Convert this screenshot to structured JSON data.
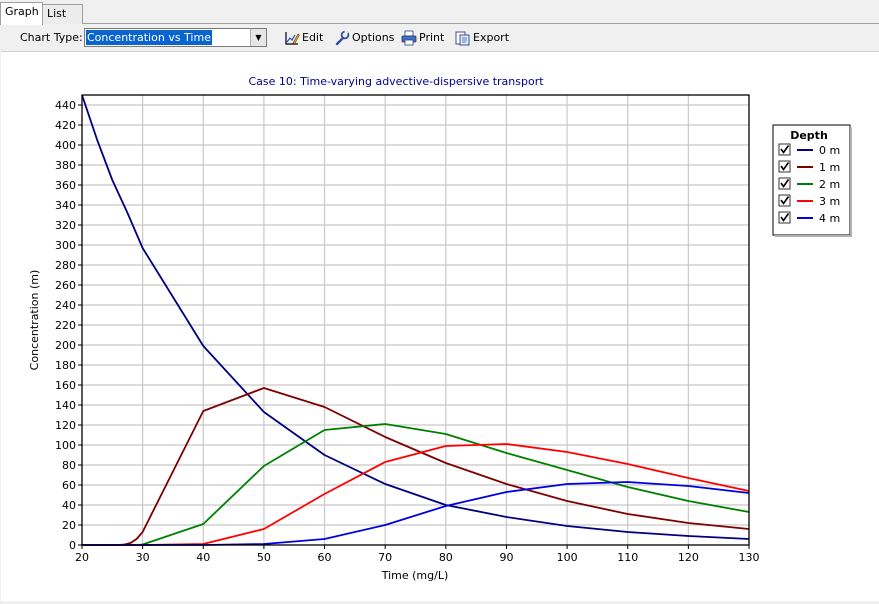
{
  "tabs": [
    {
      "label": "Graph",
      "active": true
    },
    {
      "label": "List",
      "active": false
    }
  ],
  "toolbar": {
    "chart_type_label": "Chart Type:",
    "chart_type_value": "Concentration vs Time",
    "edit_label": "Edit",
    "options_label": "Options",
    "print_label": "Print",
    "export_label": "Export"
  },
  "chart_data": {
    "type": "line",
    "title": "Case 10: Time-varying advective-dispersive transport",
    "xlabel": "Time (mg/L)",
    "ylabel": "Concentration (m)",
    "xlim": [
      20,
      130
    ],
    "ylim": [
      0,
      450
    ],
    "xticks": [
      20,
      30,
      40,
      50,
      60,
      70,
      80,
      90,
      100,
      110,
      120,
      130
    ],
    "yticks": [
      0,
      20,
      40,
      60,
      80,
      100,
      120,
      140,
      160,
      180,
      200,
      220,
      240,
      260,
      280,
      300,
      320,
      340,
      360,
      380,
      400,
      420,
      440
    ],
    "grid": true,
    "legend_title": "Depth",
    "legend_placement": "right",
    "series": [
      {
        "name": "0 m",
        "color": "#000080",
        "checked": true,
        "x": [
          20,
          22.5,
          25,
          27.5,
          30,
          40,
          50,
          60,
          70,
          80,
          90,
          100,
          110,
          120,
          130
        ],
        "y": [
          450,
          405,
          365,
          332,
          297,
          199,
          133,
          90,
          61,
          40,
          28,
          19,
          13,
          9,
          6
        ]
      },
      {
        "name": "1 m",
        "color": "#800000",
        "checked": true,
        "x": [
          20,
          26,
          27,
          28,
          29,
          30,
          40,
          50,
          60,
          70,
          80,
          90,
          100,
          110,
          120,
          130
        ],
        "y": [
          0,
          0,
          0.5,
          2,
          6,
          13,
          134,
          157,
          138,
          108,
          82,
          61,
          44,
          31,
          22,
          16
        ]
      },
      {
        "name": "2 m",
        "color": "#008000",
        "checked": true,
        "x": [
          20,
          29,
          30,
          40,
          50,
          60,
          70,
          80,
          90,
          100,
          110,
          120,
          130
        ],
        "y": [
          0,
          0,
          0.5,
          21,
          79,
          115,
          121,
          111,
          92,
          75,
          58,
          44,
          33
        ]
      },
      {
        "name": "3 m",
        "color": "#ff0000",
        "checked": true,
        "x": [
          20,
          30,
          40,
          50,
          60,
          70,
          80,
          90,
          100,
          110,
          120,
          130
        ],
        "y": [
          0,
          0,
          1,
          16,
          51,
          83,
          99,
          101,
          93,
          81,
          67,
          54
        ]
      },
      {
        "name": "4 m",
        "color": "#0000e0",
        "checked": true,
        "x": [
          20,
          30,
          40,
          50,
          60,
          70,
          80,
          90,
          100,
          110,
          120,
          130
        ],
        "y": [
          0,
          0,
          0,
          1,
          6,
          20,
          39,
          53,
          61,
          63,
          59,
          52
        ]
      }
    ]
  }
}
